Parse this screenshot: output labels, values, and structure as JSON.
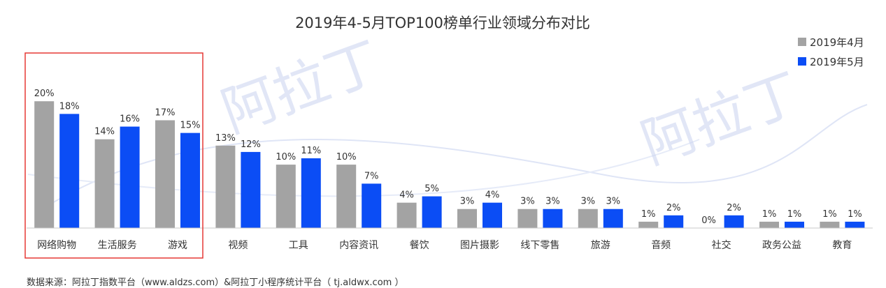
{
  "chart_data": {
    "type": "bar",
    "title": "2019年4-5月TOP100榜单行业领域分布对比",
    "categories": [
      "网络购物",
      "生活服务",
      "游戏",
      "视频",
      "工具",
      "内容资讯",
      "餐饮",
      "图片摄影",
      "线下零售",
      "旅游",
      "音频",
      "社交",
      "政务公益",
      "教育"
    ],
    "series": [
      {
        "name": "2019年4月",
        "color": "#a3a3a3",
        "values": [
          20,
          14,
          17,
          13,
          10,
          10,
          4,
          3,
          3,
          3,
          1,
          0,
          1,
          1
        ]
      },
      {
        "name": "2019年5月",
        "color": "#0b4df5",
        "values": [
          18,
          16,
          15,
          12,
          11,
          7,
          5,
          4,
          3,
          3,
          2,
          2,
          1,
          1
        ]
      }
    ],
    "value_suffix": "%",
    "ylim": [
      0,
      22
    ],
    "legend_position": "top-right",
    "highlight": {
      "categories": [
        "网络购物",
        "生活服务",
        "游戏"
      ],
      "color": "#e53935"
    }
  },
  "watermark": "阿拉丁",
  "source_note": "数据来源：阿拉丁指数平台（www.aldzs.com）&阿拉丁小程序统计平台（ tj.aldwx.com ）"
}
